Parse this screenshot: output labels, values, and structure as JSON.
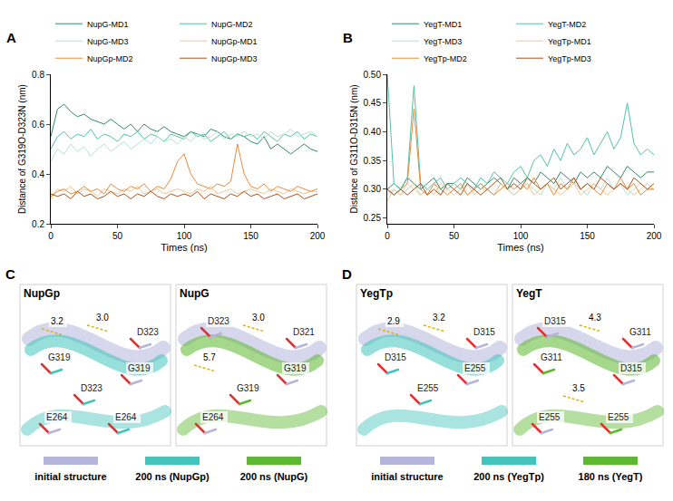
{
  "chart_data": [
    {
      "type": "line",
      "panel": "A",
      "x_label": "Times (ns)",
      "y_label": "Distance of G319O-D323N (nm)",
      "x": [
        0,
        5,
        10,
        15,
        20,
        25,
        30,
        35,
        40,
        45,
        50,
        55,
        60,
        65,
        70,
        75,
        80,
        85,
        90,
        95,
        100,
        105,
        110,
        115,
        120,
        125,
        130,
        135,
        140,
        145,
        150,
        155,
        160,
        165,
        170,
        175,
        180,
        185,
        190,
        195,
        200
      ],
      "xlim": [
        0,
        200
      ],
      "xticks": [
        0,
        50,
        100,
        150,
        200
      ],
      "ylim": [
        0.2,
        0.8
      ],
      "yticks": [
        0.2,
        0.4,
        0.6,
        0.8
      ],
      "grid": false,
      "legend": "top",
      "series": [
        {
          "name": "NupG-MD1",
          "color": "#2f8a6c",
          "values": [
            0.55,
            0.66,
            0.68,
            0.65,
            0.63,
            0.64,
            0.62,
            0.61,
            0.6,
            0.62,
            0.6,
            0.58,
            0.6,
            0.57,
            0.6,
            0.58,
            0.57,
            0.59,
            0.57,
            0.56,
            0.55,
            0.57,
            0.56,
            0.55,
            0.58,
            0.57,
            0.55,
            0.54,
            0.56,
            0.55,
            0.53,
            0.52,
            0.55,
            0.5,
            0.52,
            0.5,
            0.48,
            0.5,
            0.52,
            0.5,
            0.49
          ]
        },
        {
          "name": "NupG-MD2",
          "color": "#52c3a4",
          "values": [
            0.5,
            0.55,
            0.57,
            0.54,
            0.56,
            0.55,
            0.58,
            0.54,
            0.56,
            0.55,
            0.53,
            0.56,
            0.55,
            0.57,
            0.54,
            0.56,
            0.55,
            0.53,
            0.56,
            0.55,
            0.54,
            0.57,
            0.55,
            0.56,
            0.53,
            0.55,
            0.57,
            0.54,
            0.56,
            0.55,
            0.56,
            0.54,
            0.57,
            0.55,
            0.53,
            0.56,
            0.55,
            0.57,
            0.54,
            0.56,
            0.55
          ]
        },
        {
          "name": "NupG-MD3",
          "color": "#b5e3cf",
          "values": [
            0.45,
            0.5,
            0.48,
            0.52,
            0.49,
            0.51,
            0.47,
            0.5,
            0.52,
            0.49,
            0.51,
            0.53,
            0.5,
            0.52,
            0.54,
            0.52,
            0.55,
            0.53,
            0.54,
            0.52,
            0.55,
            0.53,
            0.56,
            0.54,
            0.55,
            0.57,
            0.54,
            0.56,
            0.55,
            0.57,
            0.55,
            0.56,
            0.54,
            0.57,
            0.55,
            0.56,
            0.58,
            0.55,
            0.56,
            0.57,
            0.55
          ]
        },
        {
          "name": "NupGp-MD1",
          "color": "#f3c58f",
          "values": [
            0.3,
            0.34,
            0.33,
            0.35,
            0.32,
            0.34,
            0.33,
            0.31,
            0.34,
            0.33,
            0.32,
            0.34,
            0.33,
            0.35,
            0.32,
            0.33,
            0.34,
            0.32,
            0.33,
            0.34,
            0.33,
            0.32,
            0.34,
            0.33,
            0.35,
            0.32,
            0.33,
            0.34,
            0.32,
            0.33,
            0.34,
            0.33,
            0.32,
            0.34,
            0.33,
            0.32,
            0.34,
            0.33,
            0.32,
            0.33,
            0.33
          ]
        },
        {
          "name": "NupGp-MD2",
          "color": "#e88a3c",
          "values": [
            0.31,
            0.33,
            0.34,
            0.32,
            0.33,
            0.35,
            0.33,
            0.34,
            0.32,
            0.36,
            0.34,
            0.33,
            0.35,
            0.34,
            0.36,
            0.33,
            0.35,
            0.34,
            0.38,
            0.45,
            0.48,
            0.4,
            0.36,
            0.35,
            0.34,
            0.36,
            0.35,
            0.37,
            0.52,
            0.4,
            0.35,
            0.34,
            0.36,
            0.33,
            0.35,
            0.34,
            0.33,
            0.35,
            0.34,
            0.33,
            0.34
          ]
        },
        {
          "name": "NupGp-MD3",
          "color": "#a9521f",
          "values": [
            0.32,
            0.31,
            0.32,
            0.3,
            0.33,
            0.31,
            0.32,
            0.3,
            0.31,
            0.33,
            0.31,
            0.32,
            0.3,
            0.32,
            0.31,
            0.33,
            0.31,
            0.3,
            0.32,
            0.31,
            0.32,
            0.31,
            0.33,
            0.3,
            0.32,
            0.31,
            0.3,
            0.32,
            0.31,
            0.33,
            0.31,
            0.32,
            0.3,
            0.31,
            0.32,
            0.3,
            0.31,
            0.32,
            0.3,
            0.31,
            0.32
          ]
        }
      ]
    },
    {
      "type": "line",
      "panel": "B",
      "x_label": "Times (ns)",
      "y_label": "Distance of G311O-D315N (nm)",
      "x": [
        0,
        5,
        10,
        15,
        20,
        25,
        30,
        35,
        40,
        45,
        50,
        55,
        60,
        65,
        70,
        75,
        80,
        85,
        90,
        95,
        100,
        105,
        110,
        115,
        120,
        125,
        130,
        135,
        140,
        145,
        150,
        155,
        160,
        165,
        170,
        175,
        180,
        185,
        190,
        195,
        200
      ],
      "xlim": [
        0,
        200
      ],
      "xticks": [
        0,
        50,
        100,
        150,
        200
      ],
      "ylim": [
        0.24,
        0.5
      ],
      "yticks": [
        0.25,
        {
          "value": 0.3,
          "label": "0.30"
        },
        0.35,
        {
          "value": 0.4,
          "label": "0.40"
        },
        0.45,
        {
          "value": 0.5,
          "label": "0.50"
        }
      ],
      "grid": false,
      "legend": "top",
      "series": [
        {
          "name": "YegT-MD1",
          "color": "#2f8a6c",
          "values": [
            0.3,
            0.31,
            0.3,
            0.32,
            0.31,
            0.3,
            0.31,
            0.32,
            0.3,
            0.31,
            0.31,
            0.3,
            0.32,
            0.31,
            0.3,
            0.31,
            0.32,
            0.31,
            0.3,
            0.32,
            0.31,
            0.32,
            0.31,
            0.33,
            0.32,
            0.31,
            0.33,
            0.32,
            0.31,
            0.33,
            0.32,
            0.33,
            0.32,
            0.34,
            0.33,
            0.32,
            0.34,
            0.33,
            0.32,
            0.33,
            0.33
          ]
        },
        {
          "name": "YegT-MD2",
          "color": "#52c3a4",
          "values": [
            0.5,
            0.31,
            0.3,
            0.32,
            0.48,
            0.31,
            0.3,
            0.31,
            0.32,
            0.3,
            0.31,
            0.32,
            0.31,
            0.3,
            0.32,
            0.31,
            0.33,
            0.32,
            0.31,
            0.33,
            0.34,
            0.32,
            0.35,
            0.36,
            0.34,
            0.37,
            0.35,
            0.38,
            0.36,
            0.37,
            0.39,
            0.36,
            0.38,
            0.4,
            0.37,
            0.39,
            0.45,
            0.38,
            0.36,
            0.37,
            0.36
          ]
        },
        {
          "name": "YegT-MD3",
          "color": "#b5e3cf",
          "values": [
            0.29,
            0.3,
            0.29,
            0.31,
            0.3,
            0.29,
            0.3,
            0.31,
            0.29,
            0.3,
            0.31,
            0.3,
            0.29,
            0.3,
            0.31,
            0.3,
            0.29,
            0.31,
            0.3,
            0.29,
            0.3,
            0.31,
            0.3,
            0.29,
            0.31,
            0.3,
            0.32,
            0.3,
            0.31,
            0.3,
            0.29,
            0.31,
            0.3,
            0.32,
            0.3,
            0.31,
            0.29,
            0.3,
            0.31,
            0.3,
            0.3
          ]
        },
        {
          "name": "YegTp-MD1",
          "color": "#f3c58f",
          "values": [
            0.28,
            0.3,
            0.29,
            0.3,
            0.31,
            0.29,
            0.3,
            0.29,
            0.31,
            0.3,
            0.29,
            0.3,
            0.31,
            0.29,
            0.3,
            0.3,
            0.29,
            0.31,
            0.3,
            0.29,
            0.3,
            0.31,
            0.29,
            0.3,
            0.31,
            0.3,
            0.29,
            0.3,
            0.31,
            0.29,
            0.3,
            0.31,
            0.3,
            0.29,
            0.3,
            0.31,
            0.3,
            0.29,
            0.3,
            0.31,
            0.3
          ]
        },
        {
          "name": "YegTp-MD2",
          "color": "#e88a3c",
          "values": [
            0.3,
            0.29,
            0.3,
            0.31,
            0.44,
            0.3,
            0.29,
            0.31,
            0.3,
            0.29,
            0.3,
            0.31,
            0.29,
            0.3,
            0.31,
            0.3,
            0.29,
            0.3,
            0.31,
            0.3,
            0.31,
            0.3,
            0.32,
            0.3,
            0.31,
            0.29,
            0.31,
            0.3,
            0.32,
            0.3,
            0.31,
            0.3,
            0.29,
            0.31,
            0.3,
            0.32,
            0.3,
            0.31,
            0.29,
            0.3,
            0.3
          ]
        },
        {
          "name": "YegTp-MD3",
          "color": "#a9521f",
          "values": [
            0.3,
            0.29,
            0.3,
            0.29,
            0.3,
            0.31,
            0.29,
            0.3,
            0.29,
            0.31,
            0.3,
            0.29,
            0.31,
            0.3,
            0.29,
            0.3,
            0.31,
            0.32,
            0.3,
            0.31,
            0.3,
            0.32,
            0.31,
            0.3,
            0.31,
            0.32,
            0.3,
            0.31,
            0.32,
            0.3,
            0.31,
            0.3,
            0.32,
            0.31,
            0.3,
            0.31,
            0.3,
            0.32,
            0.31,
            0.3,
            0.31
          ]
        }
      ]
    }
  ],
  "panels": [
    {
      "letter": "C",
      "views": [
        {
          "title": "NupGp",
          "labels": [
            "3.2",
            "3.0",
            "D323",
            "G319",
            "G319",
            "D323",
            "E264",
            "E264"
          ]
        },
        {
          "title": "NupG",
          "labels": [
            "D323",
            "3.0",
            "D321",
            "5.7",
            "G319",
            "G319",
            "E264"
          ]
        }
      ],
      "legend": [
        {
          "label": "initial structure",
          "color": "#b4b4dc"
        },
        {
          "label": "200 ns (NupGp)",
          "color": "#40c4bc"
        },
        {
          "label": "200 ns (NupG)",
          "color": "#5cb82e"
        }
      ]
    },
    {
      "letter": "D",
      "views": [
        {
          "title": "YegTp",
          "labels": [
            "2.9",
            "3.2",
            "D315",
            "D315",
            "E255",
            "E255"
          ]
        },
        {
          "title": "YegT",
          "labels": [
            "D315",
            "4.3",
            "G311",
            "G311",
            "D315",
            "3.5",
            "E255",
            "E255"
          ]
        }
      ],
      "legend": [
        {
          "label": "initial structure",
          "color": "#b4b4dc"
        },
        {
          "label": "200 ns (YegTp)",
          "color": "#40c4bc"
        },
        {
          "label": "180 ns (YegT)",
          "color": "#5cb82e"
        }
      ]
    }
  ]
}
